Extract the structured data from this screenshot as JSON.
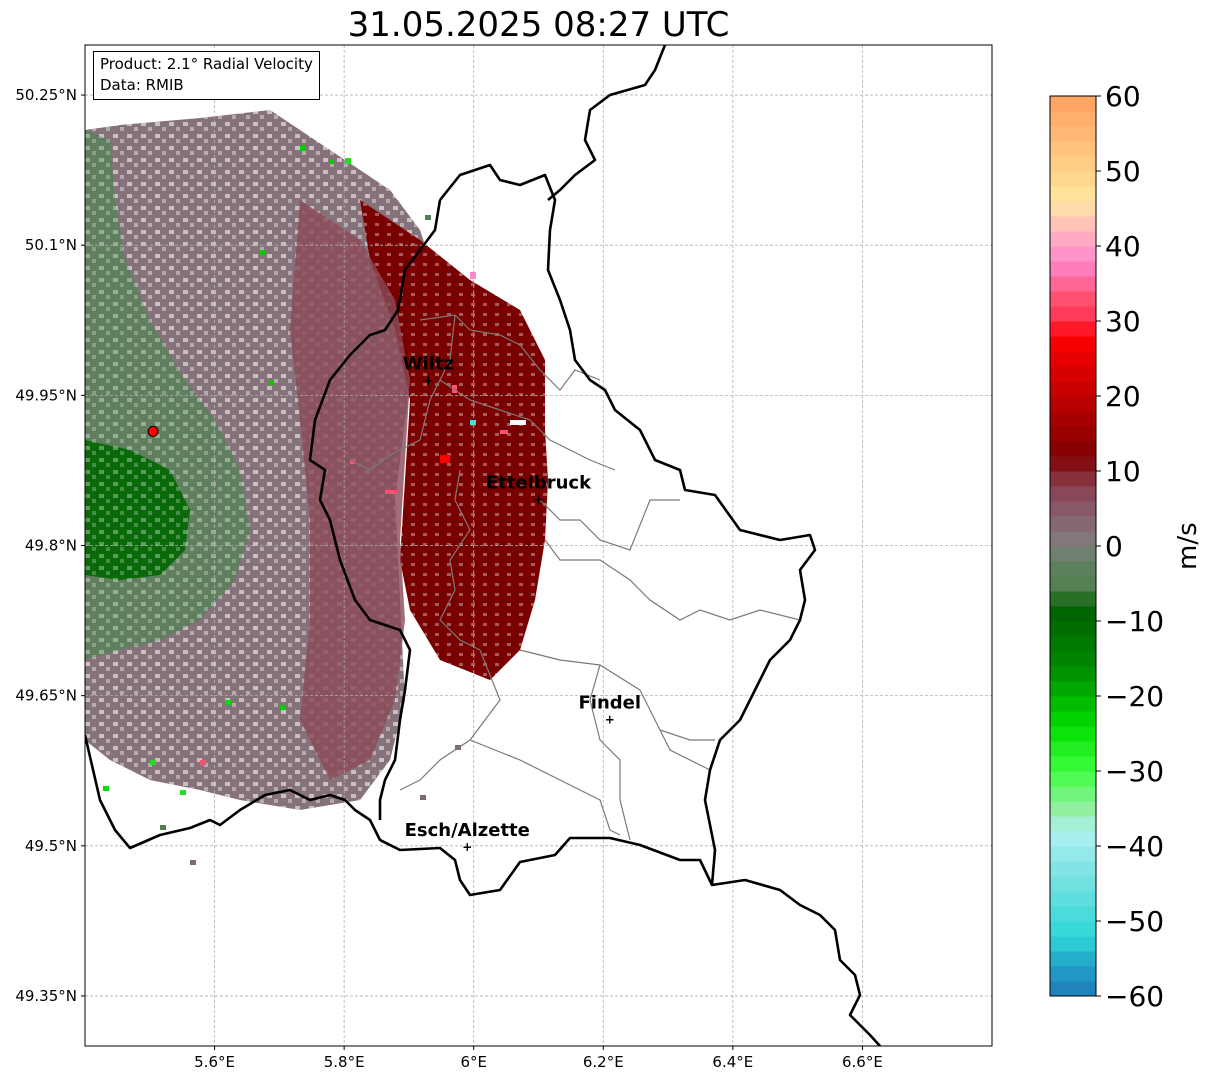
{
  "title": "31.05.2025 08:27 UTC",
  "info": {
    "product": "Product: 2.1° Radial Velocity",
    "data_source": "Data: RMIB"
  },
  "axes": {
    "x_ticks": [
      {
        "value": 5.6,
        "label": "5.6°E"
      },
      {
        "value": 5.8,
        "label": "5.8°E"
      },
      {
        "value": 6.0,
        "label": "6°E"
      },
      {
        "value": 6.2,
        "label": "6.2°E"
      },
      {
        "value": 6.4,
        "label": "6.4°E"
      },
      {
        "value": 6.6,
        "label": "6.6°E"
      }
    ],
    "y_ticks": [
      {
        "value": 50.25,
        "label": "50.25°N"
      },
      {
        "value": 50.1,
        "label": "50.1°N"
      },
      {
        "value": 49.95,
        "label": "49.95°N"
      },
      {
        "value": 49.8,
        "label": "49.8°N"
      },
      {
        "value": 49.65,
        "label": "49.65°N"
      },
      {
        "value": 49.5,
        "label": "49.5°N"
      },
      {
        "value": 49.35,
        "label": "49.35°N"
      }
    ],
    "lon_range": [
      5.4,
      6.8
    ],
    "lat_range": [
      49.3,
      50.3
    ],
    "grid": true
  },
  "radar_site": {
    "lon": 5.505,
    "lat": 49.914,
    "color": "#ff0000"
  },
  "cities": [
    {
      "name": "Wiltz",
      "lon": 5.93,
      "lat": 49.966
    },
    {
      "name": "Ettelbruck",
      "lon": 6.1,
      "lat": 49.847
    },
    {
      "name": "Findel",
      "lon": 6.21,
      "lat": 49.627
    },
    {
      "name": "Esch/Alzette",
      "lon": 5.99,
      "lat": 49.5
    }
  ],
  "colorbar": {
    "unit": "m/s",
    "min": -60,
    "max": 60,
    "ticks": [
      {
        "value": 60,
        "label": "60"
      },
      {
        "value": 50,
        "label": "50"
      },
      {
        "value": 40,
        "label": "40"
      },
      {
        "value": 30,
        "label": "30"
      },
      {
        "value": 20,
        "label": "20"
      },
      {
        "value": 10,
        "label": "10"
      },
      {
        "value": 0,
        "label": "0"
      },
      {
        "value": -10,
        "label": "−10"
      },
      {
        "value": -20,
        "label": "−20"
      },
      {
        "value": -30,
        "label": "−30"
      },
      {
        "value": -40,
        "label": "−40"
      },
      {
        "value": -50,
        "label": "−50"
      },
      {
        "value": -60,
        "label": "−60"
      }
    ],
    "stops": [
      {
        "value": 60,
        "color": "#ffa060"
      },
      {
        "value": 52,
        "color": "#ffc880"
      },
      {
        "value": 46,
        "color": "#ffe8a0"
      },
      {
        "value": 42,
        "color": "#ffb8c0"
      },
      {
        "value": 38,
        "color": "#ff88cc"
      },
      {
        "value": 33,
        "color": "#ff5070"
      },
      {
        "value": 30,
        "color": "#ff3050"
      },
      {
        "value": 28,
        "color": "#ff0000"
      },
      {
        "value": 20,
        "color": "#c00000"
      },
      {
        "value": 12,
        "color": "#800000"
      },
      {
        "value": 8,
        "color": "#884050"
      },
      {
        "value": 4,
        "color": "#886070"
      },
      {
        "value": 0,
        "color": "#808080"
      },
      {
        "value": -2,
        "color": "#608060"
      },
      {
        "value": -6,
        "color": "#508050"
      },
      {
        "value": -8,
        "color": "#006000"
      },
      {
        "value": -16,
        "color": "#008800"
      },
      {
        "value": -24,
        "color": "#00dd00"
      },
      {
        "value": -30,
        "color": "#40ff40"
      },
      {
        "value": -35,
        "color": "#90f0a0"
      },
      {
        "value": -38,
        "color": "#b0f0f0"
      },
      {
        "value": -45,
        "color": "#70e0e0"
      },
      {
        "value": -52,
        "color": "#30d8d8"
      },
      {
        "value": -56,
        "color": "#20a0c8"
      },
      {
        "value": -60,
        "color": "#1f7ab8"
      }
    ]
  }
}
